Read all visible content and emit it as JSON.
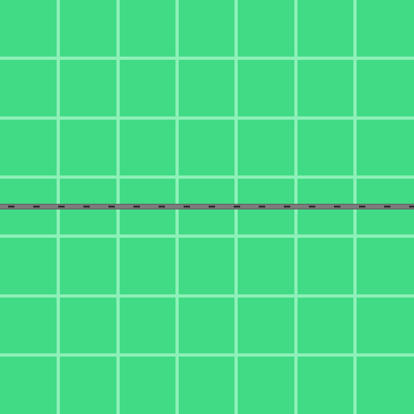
{
  "board": {
    "background_color": "#41db86",
    "grid_line_color": "#8ef0b8",
    "columns": 7,
    "rows": 7
  },
  "road": {
    "type": "horizontal-road",
    "asphalt_color": "#7c7c7c",
    "edge_color": "#5e5e5e",
    "dash_color": "#1f1f1f"
  }
}
